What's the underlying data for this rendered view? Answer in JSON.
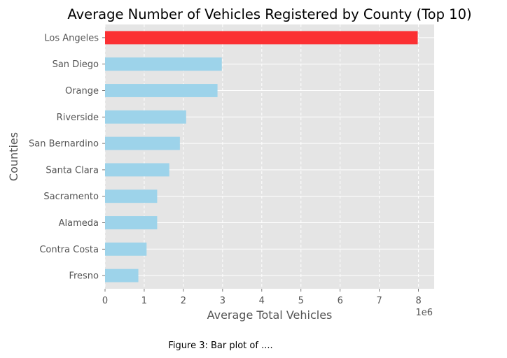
{
  "figure": {
    "caption": "Figure 3: Bar plot of ...."
  },
  "chart_data": {
    "type": "bar",
    "orientation": "horizontal",
    "title": "Average Number of Vehicles Registered by County (Top 10)",
    "xlabel": "Average Total Vehicles",
    "ylabel": "Counties",
    "x_offset_text": "1e6",
    "x_scale_note": "values in vehicles; axis ticks shown in units of 1e6",
    "xlim": [
      0,
      8400000
    ],
    "xticks": [
      0,
      1000000,
      2000000,
      3000000,
      4000000,
      5000000,
      6000000,
      7000000,
      8000000
    ],
    "xtick_labels": [
      "0",
      "1",
      "2",
      "3",
      "4",
      "5",
      "6",
      "7",
      "8"
    ],
    "categories": [
      "Los Angeles",
      "San Diego",
      "Orange",
      "Riverside",
      "San Bernardino",
      "Santa Clara",
      "Sacramento",
      "Alameda",
      "Contra Costa",
      "Fresno"
    ],
    "values": [
      7980000,
      2980000,
      2870000,
      2070000,
      1910000,
      1640000,
      1330000,
      1330000,
      1060000,
      850000
    ],
    "highlight_index": 0,
    "colors": {
      "bar": "#9dd3ea",
      "highlight": "#fb3033",
      "plot_bg": "#e5e5e5",
      "grid": "#ffffff",
      "text": "#555555",
      "title": "#000000"
    },
    "grid": true,
    "legend": "none"
  }
}
